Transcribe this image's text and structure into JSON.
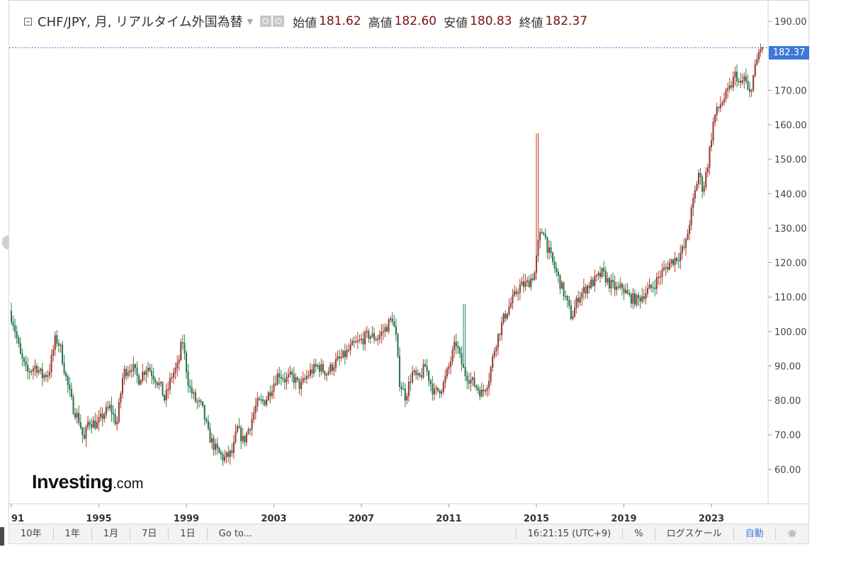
{
  "legend": {
    "symbol": "CHF/JPY, 月, リアルタイム外国為替",
    "open_label": "始値",
    "open_value": "181.62",
    "high_label": "高値",
    "high_value": "182.60",
    "low_label": "安値",
    "low_value": "180.83",
    "close_label": "終値",
    "close_value": "182.37"
  },
  "current_price_tag": "182.37",
  "logo": {
    "brand": "Investing",
    "tld": ".com"
  },
  "toolbar": {
    "range_10y": "10年",
    "range_1y": "1年",
    "range_1m": "1月",
    "range_7d": "7日",
    "range_1d": "1日",
    "goto": "Go to...",
    "clock": "16:21:15 (UTC+9)",
    "percent": "%",
    "log_scale": "ログスケール",
    "auto": "自動"
  },
  "colors": {
    "up": "#c0392b",
    "down": "#1e8a4e",
    "tag": "#3c78d8",
    "grid": "#e6e6e6"
  },
  "chart_data": {
    "type": "candlestick",
    "title": "CHF/JPY, 月, リアルタイム外国為替",
    "interval": "monthly",
    "ylim": [
      50,
      196
    ],
    "yticks": [
      "60.00",
      "70.00",
      "80.00",
      "90.00",
      "100.00",
      "110.00",
      "120.00",
      "130.00",
      "140.00",
      "150.00",
      "160.00",
      "170.00",
      "180.00",
      "190.00"
    ],
    "xticks": [
      "91",
      "1995",
      "1999",
      "2003",
      "2007",
      "2011",
      "2015",
      "2019",
      "2023"
    ],
    "xtick_years": [
      1991,
      1995,
      1999,
      2003,
      2007,
      2011,
      2015,
      2019,
      2023
    ],
    "xlim_years": [
      1991.0,
      2025.3
    ],
    "last_price": 182.37,
    "price_path": [
      [
        1991.0,
        106
      ],
      [
        1991.2,
        102
      ],
      [
        1991.5,
        93
      ],
      [
        1991.8,
        88
      ],
      [
        1992.2,
        90
      ],
      [
        1992.5,
        87
      ],
      [
        1992.8,
        88
      ],
      [
        1993.1,
        98
      ],
      [
        1993.3,
        96
      ],
      [
        1993.6,
        86
      ],
      [
        1993.9,
        78
      ],
      [
        1994.2,
        74
      ],
      [
        1994.4,
        68
      ],
      [
        1994.6,
        74
      ],
      [
        1995.0,
        73
      ],
      [
        1995.3,
        76
      ],
      [
        1995.6,
        78
      ],
      [
        1995.9,
        73
      ],
      [
        1996.2,
        88
      ],
      [
        1996.6,
        90
      ],
      [
        1996.9,
        86
      ],
      [
        1997.3,
        90
      ],
      [
        1997.6,
        87
      ],
      [
        1997.9,
        84
      ],
      [
        1998.1,
        80
      ],
      [
        1998.4,
        87
      ],
      [
        1998.7,
        90
      ],
      [
        1998.9,
        98
      ],
      [
        1999.0,
        93
      ],
      [
        1999.2,
        84
      ],
      [
        1999.5,
        80
      ],
      [
        1999.8,
        78
      ],
      [
        2000.1,
        70
      ],
      [
        2000.4,
        66
      ],
      [
        2000.8,
        63
      ],
      [
        2001.2,
        65
      ],
      [
        2001.4,
        72
      ],
      [
        2001.7,
        68
      ],
      [
        2002.0,
        73
      ],
      [
        2002.3,
        79
      ],
      [
        2002.7,
        80
      ],
      [
        2003.0,
        84
      ],
      [
        2003.3,
        88
      ],
      [
        2003.6,
        86
      ],
      [
        2003.9,
        87
      ],
      [
        2004.3,
        84
      ],
      [
        2004.7,
        88
      ],
      [
        2005.1,
        90
      ],
      [
        2005.5,
        88
      ],
      [
        2005.9,
        91
      ],
      [
        2006.3,
        93
      ],
      [
        2006.7,
        96
      ],
      [
        2007.0,
        97
      ],
      [
        2007.4,
        99
      ],
      [
        2007.8,
        98
      ],
      [
        2008.2,
        101
      ],
      [
        2008.5,
        104
      ],
      [
        2008.7,
        97
      ],
      [
        2008.8,
        86
      ],
      [
        2009.1,
        81
      ],
      [
        2009.4,
        88
      ],
      [
        2009.7,
        86
      ],
      [
        2010.0,
        90
      ],
      [
        2010.4,
        82
      ],
      [
        2010.8,
        84
      ],
      [
        2011.1,
        90
      ],
      [
        2011.4,
        97
      ],
      [
        2011.6,
        92
      ],
      [
        2011.8,
        88
      ],
      [
        2012.2,
        85
      ],
      [
        2012.6,
        82
      ],
      [
        2012.9,
        86
      ],
      [
        2013.2,
        96
      ],
      [
        2013.6,
        104
      ],
      [
        2013.9,
        108
      ],
      [
        2014.3,
        113
      ],
      [
        2014.7,
        114
      ],
      [
        2015.0,
        117
      ],
      [
        2015.2,
        127
      ],
      [
        2015.4,
        130
      ],
      [
        2015.6,
        124
      ],
      [
        2016.0,
        117
      ],
      [
        2016.4,
        110
      ],
      [
        2016.7,
        104
      ],
      [
        2017.0,
        110
      ],
      [
        2017.4,
        113
      ],
      [
        2017.8,
        115
      ],
      [
        2018.1,
        117
      ],
      [
        2018.4,
        114
      ],
      [
        2018.8,
        112
      ],
      [
        2019.0,
        113
      ],
      [
        2019.3,
        110
      ],
      [
        2019.7,
        109
      ],
      [
        2020.0,
        111
      ],
      [
        2020.4,
        113
      ],
      [
        2020.8,
        117
      ],
      [
        2021.2,
        120
      ],
      [
        2021.6,
        122
      ],
      [
        2021.9,
        125
      ],
      [
        2022.2,
        136
      ],
      [
        2022.5,
        146
      ],
      [
        2022.7,
        141
      ],
      [
        2022.9,
        148
      ],
      [
        2023.2,
        162
      ],
      [
        2023.5,
        166
      ],
      [
        2023.9,
        170
      ],
      [
        2024.2,
        175
      ],
      [
        2024.4,
        171
      ],
      [
        2024.6,
        174
      ],
      [
        2024.8,
        168
      ],
      [
        2025.0,
        174
      ],
      [
        2025.3,
        182.37
      ]
    ],
    "spikes": [
      {
        "year": 2015.05,
        "high": 157.5
      },
      {
        "year": 2011.7,
        "high": 108
      }
    ]
  }
}
